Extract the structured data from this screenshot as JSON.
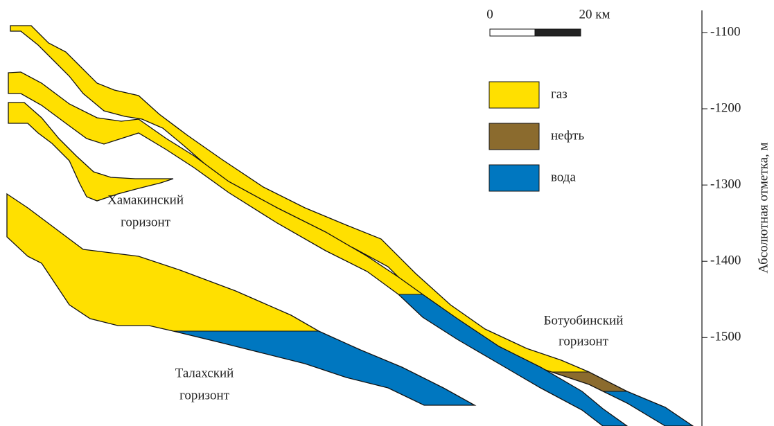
{
  "scale_bar": {
    "start": "0",
    "end": "20 км"
  },
  "legend": [
    {
      "label": "газ",
      "color": "#FFE000"
    },
    {
      "label": "нефть",
      "color": "#8B6B2E"
    },
    {
      "label": "вода",
      "color": "#0077C0"
    }
  ],
  "labels": [
    [
      "Хамакинский",
      "горизонт"
    ],
    [
      "Талахский",
      "горизонт"
    ],
    [
      "Ботуобинский",
      "горизонт"
    ]
  ],
  "axis": {
    "title": "Абсолютная отметка, м",
    "ticks": [
      -1100,
      -1200,
      -1300,
      -1400,
      -1500
    ],
    "range": [
      -1071,
      -1616
    ]
  }
}
